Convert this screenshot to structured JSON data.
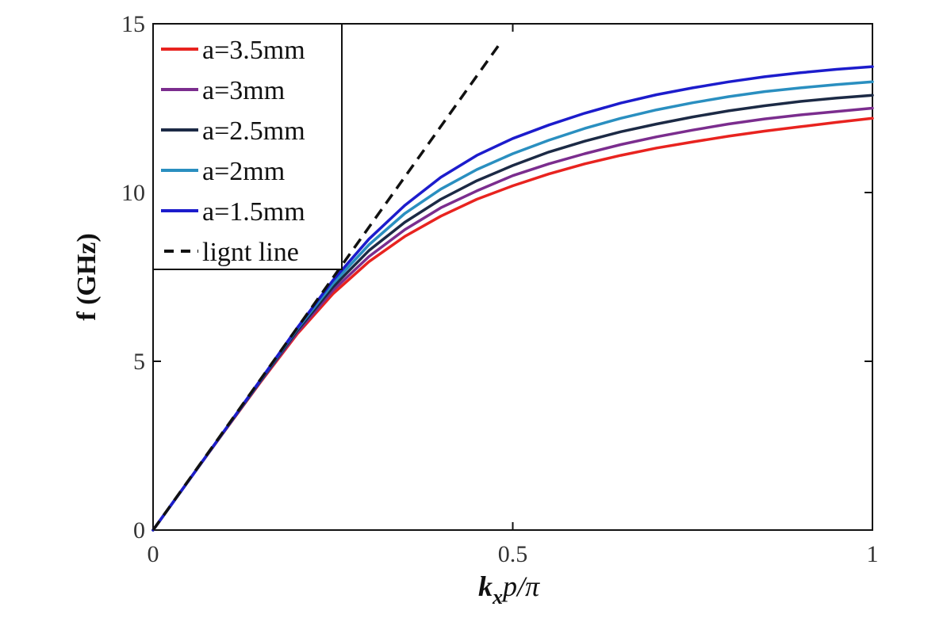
{
  "chart_data": {
    "type": "line",
    "xlabel": {
      "k": "k",
      "sub": "x",
      "rest": "p/π"
    },
    "ylabel": "f (GHz)",
    "xlim": [
      0,
      1
    ],
    "ylim": [
      0,
      15
    ],
    "xticks": [
      {
        "value": 0,
        "label": "0"
      },
      {
        "value": 0.5,
        "label": "0.5"
      },
      {
        "value": 1,
        "label": "1"
      }
    ],
    "yticks": [
      {
        "value": 0,
        "label": "0"
      },
      {
        "value": 5,
        "label": "5"
      },
      {
        "value": 10,
        "label": "10"
      },
      {
        "value": 15,
        "label": "15"
      }
    ],
    "grid": false,
    "legend_position": "top-left",
    "x": [
      0,
      0.05,
      0.1,
      0.15,
      0.2,
      0.25,
      0.3,
      0.35,
      0.4,
      0.45,
      0.5,
      0.55,
      0.6,
      0.65,
      0.7,
      0.75,
      0.8,
      0.85,
      0.9,
      0.95,
      1.0
    ],
    "series": [
      {
        "name": "a=3.5mm",
        "color": "#e8231f",
        "dash": false,
        "values": [
          0,
          1.48,
          2.95,
          4.4,
          5.8,
          7.0,
          7.95,
          8.7,
          9.3,
          9.8,
          10.2,
          10.55,
          10.85,
          11.1,
          11.32,
          11.5,
          11.67,
          11.82,
          11.95,
          12.08,
          12.2
        ]
      },
      {
        "name": "a=3mm",
        "color": "#7b2d8e",
        "dash": false,
        "values": [
          0,
          1.48,
          2.96,
          4.42,
          5.85,
          7.1,
          8.1,
          8.9,
          9.55,
          10.05,
          10.5,
          10.85,
          11.15,
          11.42,
          11.65,
          11.85,
          12.03,
          12.18,
          12.3,
          12.4,
          12.5
        ]
      },
      {
        "name": "a=2.5mm",
        "color": "#1c2a45",
        "dash": false,
        "values": [
          0,
          1.48,
          2.96,
          4.44,
          5.9,
          7.2,
          8.28,
          9.12,
          9.8,
          10.35,
          10.8,
          11.2,
          11.52,
          11.8,
          12.03,
          12.24,
          12.42,
          12.57,
          12.7,
          12.8,
          12.88
        ]
      },
      {
        "name": "a=2mm",
        "color": "#2a8fc0",
        "dash": false,
        "values": [
          0,
          1.48,
          2.97,
          4.46,
          5.95,
          7.3,
          8.45,
          9.38,
          10.1,
          10.68,
          11.15,
          11.55,
          11.9,
          12.2,
          12.45,
          12.66,
          12.84,
          12.99,
          13.1,
          13.2,
          13.28
        ]
      },
      {
        "name": "a=1.5mm",
        "color": "#1c1ccc",
        "dash": false,
        "values": [
          0,
          1.48,
          2.97,
          4.47,
          5.98,
          7.4,
          8.62,
          9.62,
          10.45,
          11.1,
          11.6,
          12.0,
          12.35,
          12.65,
          12.9,
          13.1,
          13.28,
          13.43,
          13.55,
          13.65,
          13.73
        ]
      },
      {
        "name": "lignt line",
        "color": "#111111",
        "dash": true,
        "x": [
          0,
          0.485
        ],
        "values": [
          0,
          14.5
        ]
      }
    ]
  }
}
